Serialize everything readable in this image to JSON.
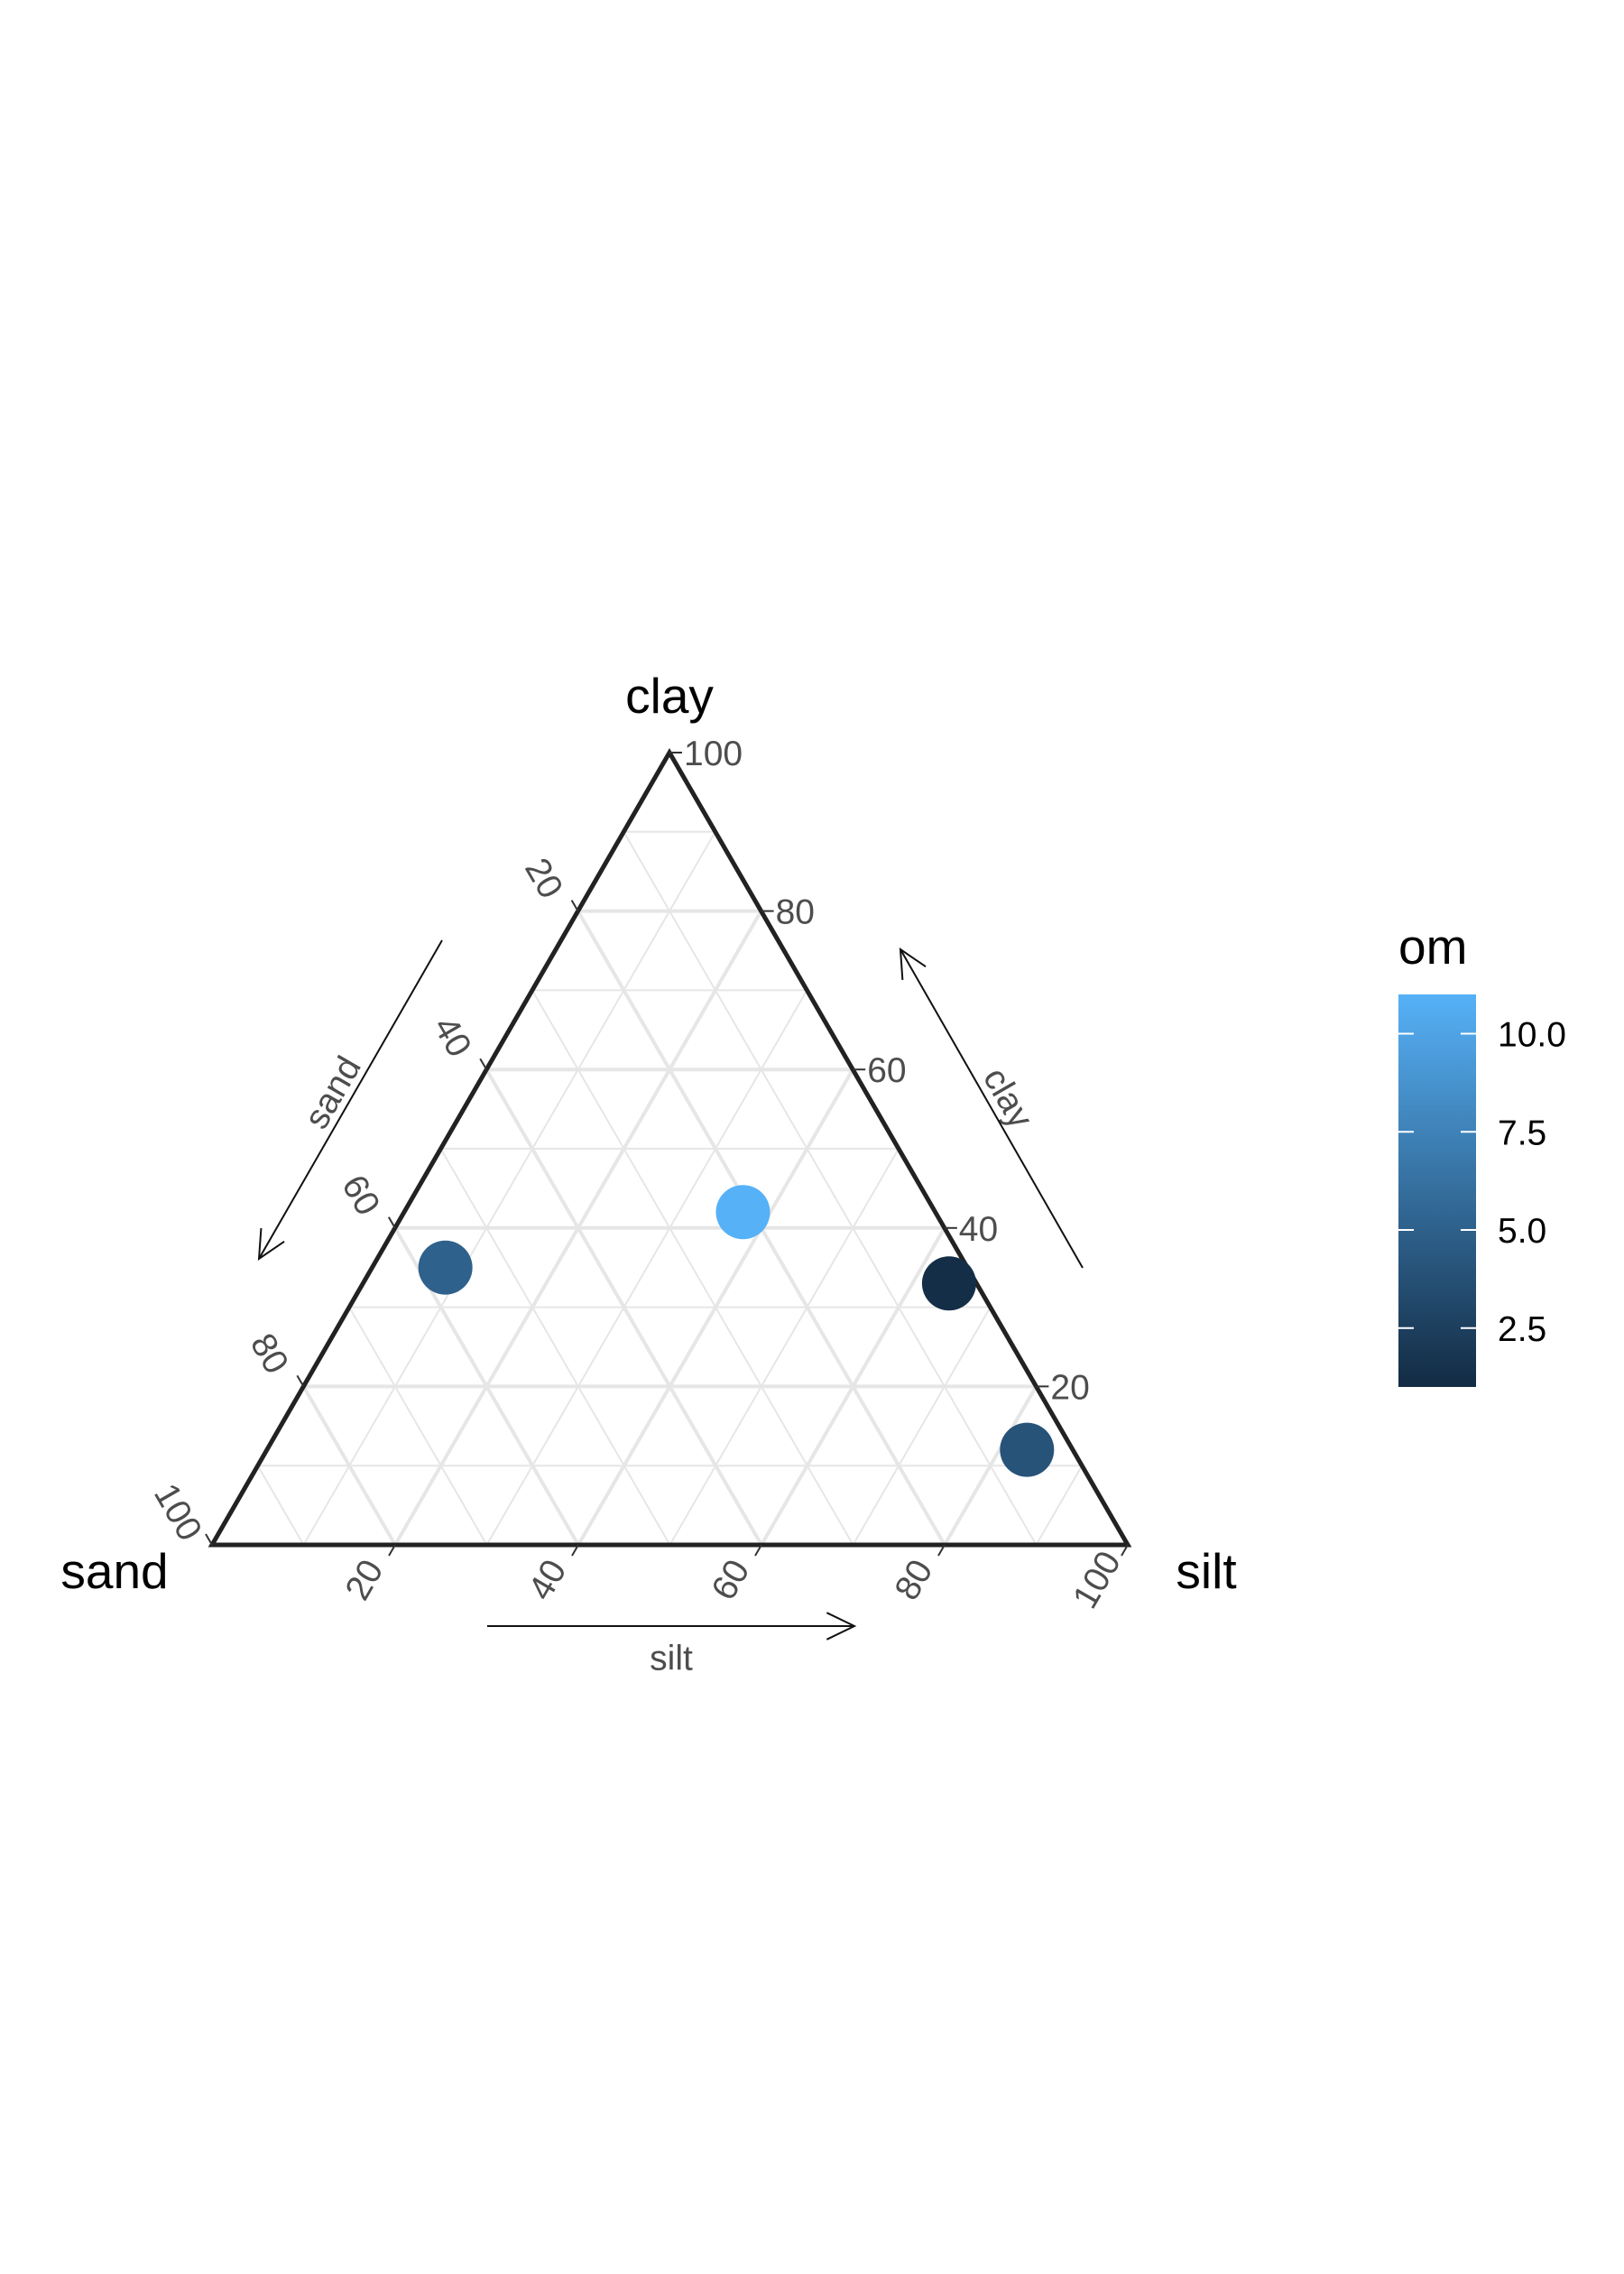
{
  "chart_data": {
    "type": "ternary-scatter",
    "axes": {
      "top": "clay",
      "left": "sand",
      "right": "silt"
    },
    "ticks": [
      20,
      40,
      60,
      80,
      100
    ],
    "tick_labels": [
      "20",
      "40",
      "60",
      "80",
      "100"
    ],
    "arrow_labels": {
      "sand": "sand",
      "clay": "clay",
      "silt": "silt"
    },
    "points": [
      {
        "sand": 57,
        "silt": 8,
        "clay": 35,
        "om": 5.0
      },
      {
        "sand": 21,
        "silt": 37,
        "clay": 42,
        "om": 11.0
      },
      {
        "sand": 3,
        "silt": 64,
        "clay": 33,
        "om": 1.2
      },
      {
        "sand": 5,
        "silt": 83,
        "clay": 12,
        "om": 4.0
      }
    ],
    "legend": {
      "title": "om",
      "type": "colorbar",
      "position": "right",
      "range": [
        1.0,
        11.0
      ],
      "breaks": [
        2.5,
        5.0,
        7.5,
        10.0
      ],
      "break_labels": [
        "2.5",
        "5.0",
        "7.5",
        "10.0"
      ],
      "color_low": "#132b43",
      "color_high": "#56b1f7"
    },
    "grid": true
  }
}
